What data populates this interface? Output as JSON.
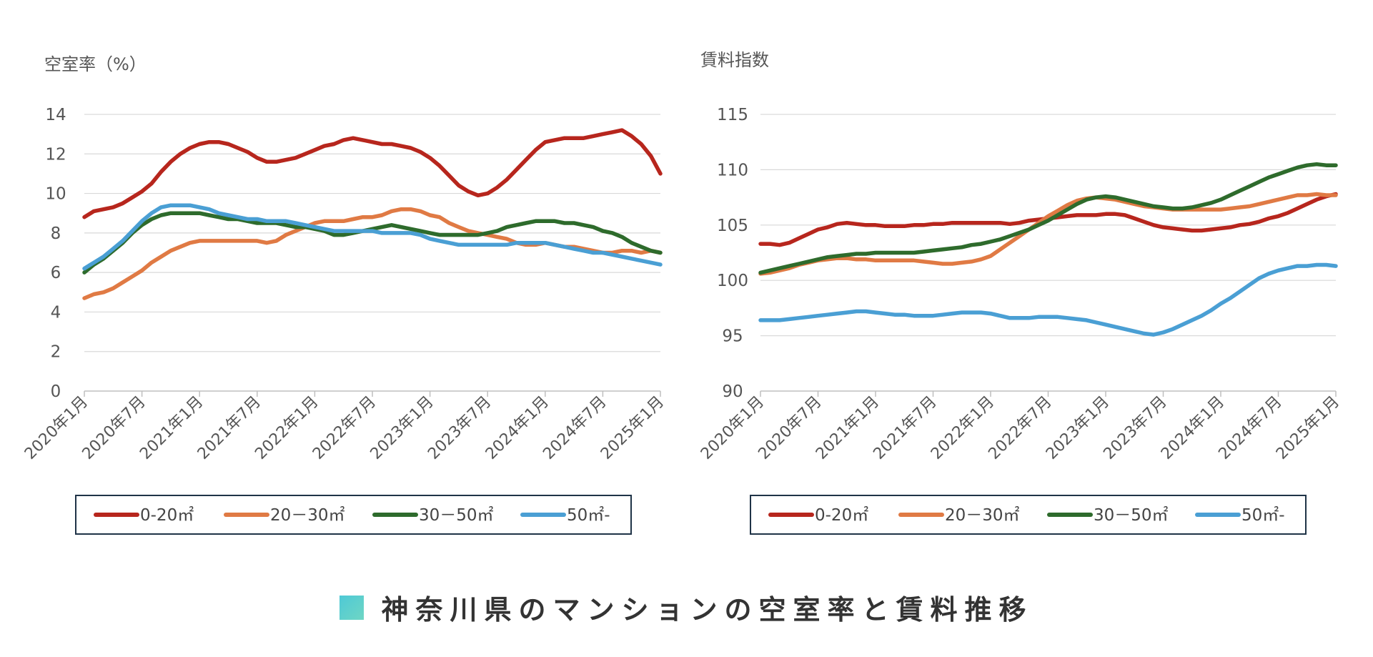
{
  "page_title": "神奈川県のマンションの空室率と賃料推移",
  "colors": {
    "s0": "#b7261d",
    "s1": "#e07a44",
    "s2": "#2e6b2c",
    "s3": "#4a9fd4",
    "title_square": "#4ec9d6"
  },
  "chart_data": [
    {
      "type": "line",
      "title": "",
      "ylabel": "空室率（%）",
      "xlabel": "",
      "ylim": [
        0,
        14
      ],
      "yticks": [
        "0",
        "2",
        "4",
        "6",
        "8",
        "10",
        "12",
        "14"
      ],
      "x_range": [
        0,
        60
      ],
      "x_tick_labels": [
        "2020年1月",
        "2020年7月",
        "2021年1月",
        "2021年7月",
        "2022年1月",
        "2022年7月",
        "2023年1月",
        "2023年7月",
        "2024年1月",
        "2024年7月",
        "2025年1月"
      ],
      "legend": [
        "0-20㎡",
        "20－30㎡",
        "30－50㎡",
        "50㎡-"
      ],
      "series": [
        {
          "name": "0-20㎡",
          "values": [
            8.8,
            9.1,
            9.2,
            9.3,
            9.5,
            9.8,
            10.1,
            10.5,
            11.1,
            11.6,
            12.0,
            12.3,
            12.5,
            12.6,
            12.6,
            12.5,
            12.3,
            12.1,
            11.8,
            11.6,
            11.6,
            11.7,
            11.8,
            12.0,
            12.2,
            12.4,
            12.5,
            12.7,
            12.8,
            12.7,
            12.6,
            12.5,
            12.5,
            12.4,
            12.3,
            12.1,
            11.8,
            11.4,
            10.9,
            10.4,
            10.1,
            9.9,
            10.0,
            10.3,
            10.7,
            11.2,
            11.7,
            12.2,
            12.6,
            12.7,
            12.8,
            12.8,
            12.8,
            12.9,
            13.0,
            13.1,
            13.2,
            12.9,
            12.5,
            11.9,
            11.0
          ]
        },
        {
          "name": "20－30㎡",
          "values": [
            4.7,
            4.9,
            5.0,
            5.2,
            5.5,
            5.8,
            6.1,
            6.5,
            6.8,
            7.1,
            7.3,
            7.5,
            7.6,
            7.6,
            7.6,
            7.6,
            7.6,
            7.6,
            7.6,
            7.5,
            7.6,
            7.9,
            8.1,
            8.3,
            8.5,
            8.6,
            8.6,
            8.6,
            8.7,
            8.8,
            8.8,
            8.9,
            9.1,
            9.2,
            9.2,
            9.1,
            8.9,
            8.8,
            8.5,
            8.3,
            8.1,
            8.0,
            7.9,
            7.8,
            7.7,
            7.5,
            7.4,
            7.4,
            7.5,
            7.4,
            7.3,
            7.3,
            7.2,
            7.1,
            7.0,
            7.0,
            7.1,
            7.1,
            7.0,
            7.1,
            7.0
          ]
        },
        {
          "name": "30－50㎡",
          "values": [
            6.0,
            6.4,
            6.7,
            7.1,
            7.5,
            8.0,
            8.4,
            8.7,
            8.9,
            9.0,
            9.0,
            9.0,
            9.0,
            8.9,
            8.8,
            8.7,
            8.7,
            8.6,
            8.5,
            8.5,
            8.5,
            8.4,
            8.3,
            8.3,
            8.2,
            8.1,
            7.9,
            7.9,
            8.0,
            8.1,
            8.2,
            8.3,
            8.4,
            8.3,
            8.2,
            8.1,
            8.0,
            7.9,
            7.9,
            7.9,
            7.9,
            7.9,
            8.0,
            8.1,
            8.3,
            8.4,
            8.5,
            8.6,
            8.6,
            8.6,
            8.5,
            8.5,
            8.4,
            8.3,
            8.1,
            8.0,
            7.8,
            7.5,
            7.3,
            7.1,
            7.0
          ]
        },
        {
          "name": "50㎡-",
          "values": [
            6.2,
            6.5,
            6.8,
            7.2,
            7.6,
            8.1,
            8.6,
            9.0,
            9.3,
            9.4,
            9.4,
            9.4,
            9.3,
            9.2,
            9.0,
            8.9,
            8.8,
            8.7,
            8.7,
            8.6,
            8.6,
            8.6,
            8.5,
            8.4,
            8.3,
            8.2,
            8.1,
            8.1,
            8.1,
            8.1,
            8.1,
            8.0,
            8.0,
            8.0,
            8.0,
            7.9,
            7.7,
            7.6,
            7.5,
            7.4,
            7.4,
            7.4,
            7.4,
            7.4,
            7.4,
            7.5,
            7.5,
            7.5,
            7.5,
            7.4,
            7.3,
            7.2,
            7.1,
            7.0,
            7.0,
            6.9,
            6.8,
            6.7,
            6.6,
            6.5,
            6.4
          ]
        }
      ]
    },
    {
      "type": "line",
      "title": "",
      "ylabel": "賃料指数",
      "xlabel": "",
      "ylim": [
        90,
        115
      ],
      "yticks": [
        "90",
        "95",
        "100",
        "105",
        "110",
        "115"
      ],
      "x_range": [
        0,
        60
      ],
      "x_tick_labels": [
        "2020年1月",
        "2020年7月",
        "2021年1月",
        "2021年7月",
        "2022年1月",
        "2022年7月",
        "2023年1月",
        "2023年7月",
        "2024年1月",
        "2024年7月",
        "2025年1月"
      ],
      "legend": [
        "0-20㎡",
        "20－30㎡",
        "30－50㎡",
        "50㎡-"
      ],
      "series": [
        {
          "name": "0-20㎡",
          "values": [
            103.3,
            103.3,
            103.2,
            103.4,
            103.8,
            104.2,
            104.6,
            104.8,
            105.1,
            105.2,
            105.1,
            105.0,
            105.0,
            104.9,
            104.9,
            104.9,
            105.0,
            105.0,
            105.1,
            105.1,
            105.2,
            105.2,
            105.2,
            105.2,
            105.2,
            105.2,
            105.1,
            105.2,
            105.4,
            105.5,
            105.6,
            105.7,
            105.8,
            105.9,
            105.9,
            105.9,
            106.0,
            106.0,
            105.9,
            105.6,
            105.3,
            105.0,
            104.8,
            104.7,
            104.6,
            104.5,
            104.5,
            104.6,
            104.7,
            104.8,
            105.0,
            105.1,
            105.3,
            105.6,
            105.8,
            106.1,
            106.5,
            106.9,
            107.3,
            107.6,
            107.8
          ]
        },
        {
          "name": "20－30㎡",
          "values": [
            100.6,
            100.7,
            100.9,
            101.1,
            101.4,
            101.6,
            101.8,
            101.9,
            102.0,
            102.0,
            101.9,
            101.9,
            101.8,
            101.8,
            101.8,
            101.8,
            101.8,
            101.7,
            101.6,
            101.5,
            101.5,
            101.6,
            101.7,
            101.9,
            102.2,
            102.8,
            103.4,
            104.0,
            104.6,
            105.2,
            105.8,
            106.3,
            106.8,
            107.2,
            107.4,
            107.5,
            107.4,
            107.3,
            107.1,
            106.9,
            106.7,
            106.6,
            106.5,
            106.4,
            106.4,
            106.4,
            106.4,
            106.4,
            106.4,
            106.5,
            106.6,
            106.7,
            106.9,
            107.1,
            107.3,
            107.5,
            107.7,
            107.7,
            107.8,
            107.7,
            107.7
          ]
        },
        {
          "name": "30－50㎡",
          "values": [
            100.7,
            100.9,
            101.1,
            101.3,
            101.5,
            101.7,
            101.9,
            102.1,
            102.2,
            102.3,
            102.4,
            102.4,
            102.5,
            102.5,
            102.5,
            102.5,
            102.5,
            102.6,
            102.7,
            102.8,
            102.9,
            103.0,
            103.2,
            103.3,
            103.5,
            103.7,
            104.0,
            104.3,
            104.6,
            105.0,
            105.4,
            105.9,
            106.4,
            106.9,
            107.3,
            107.5,
            107.6,
            107.5,
            107.3,
            107.1,
            106.9,
            106.7,
            106.6,
            106.5,
            106.5,
            106.6,
            106.8,
            107.0,
            107.3,
            107.7,
            108.1,
            108.5,
            108.9,
            109.3,
            109.6,
            109.9,
            110.2,
            110.4,
            110.5,
            110.4,
            110.4
          ]
        },
        {
          "name": "50㎡-",
          "values": [
            96.4,
            96.4,
            96.4,
            96.5,
            96.6,
            96.7,
            96.8,
            96.9,
            97.0,
            97.1,
            97.2,
            97.2,
            97.1,
            97.0,
            96.9,
            96.9,
            96.8,
            96.8,
            96.8,
            96.9,
            97.0,
            97.1,
            97.1,
            97.1,
            97.0,
            96.8,
            96.6,
            96.6,
            96.6,
            96.7,
            96.7,
            96.7,
            96.6,
            96.5,
            96.4,
            96.2,
            96.0,
            95.8,
            95.6,
            95.4,
            95.2,
            95.1,
            95.3,
            95.6,
            96.0,
            96.4,
            96.8,
            97.3,
            97.9,
            98.4,
            99.0,
            99.6,
            100.2,
            100.6,
            100.9,
            101.1,
            101.3,
            101.3,
            101.4,
            101.4,
            101.3
          ]
        }
      ]
    }
  ]
}
